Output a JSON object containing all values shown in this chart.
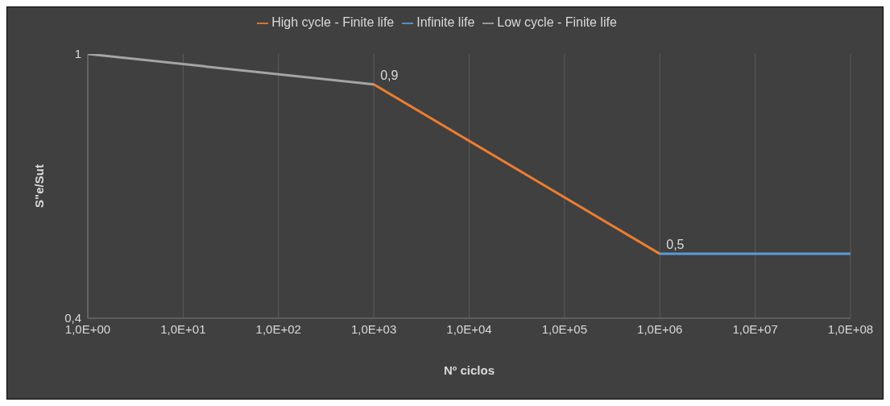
{
  "chart_data": {
    "type": "line",
    "xlabel": "Nº ciclos",
    "ylabel": "S\"e/Sut",
    "categories": [
      "1,0E+00",
      "1,0E+01",
      "1,0E+02",
      "1,0E+03",
      "1,0E+04",
      "1,0E+05",
      "1,0E+06",
      "1,0E+07",
      "1,0E+08"
    ],
    "series": [
      {
        "name": "Infinite life",
        "color": "#5b9bd5",
        "values": [
          null,
          null,
          null,
          null,
          null,
          null,
          0.5,
          null,
          0.5
        ]
      },
      {
        "name": "High cycle - Finite life",
        "color": "#ed7d31",
        "values": [
          null,
          null,
          null,
          0.9,
          null,
          null,
          0.5,
          null,
          null
        ]
      },
      {
        "name": "Low cycle - Finite life",
        "color": "#a5a5a5",
        "values": [
          1,
          null,
          null,
          0.9,
          null,
          null,
          null,
          null,
          null
        ]
      }
    ],
    "annotations": [
      {
        "text": "0,9",
        "x": "1,0E+03",
        "y": 0.9
      },
      {
        "text": "0,5",
        "x": "1,0E+06",
        "y": 0.5
      }
    ],
    "log": "y",
    "ylim": [
      0.4,
      1
    ],
    "yticks": [
      {
        "value": 0.4,
        "label": "0,4"
      },
      {
        "value": 1,
        "label": "1"
      }
    ],
    "grid": "x",
    "legend": "top",
    "marker": "none",
    "line_style": "solid"
  }
}
